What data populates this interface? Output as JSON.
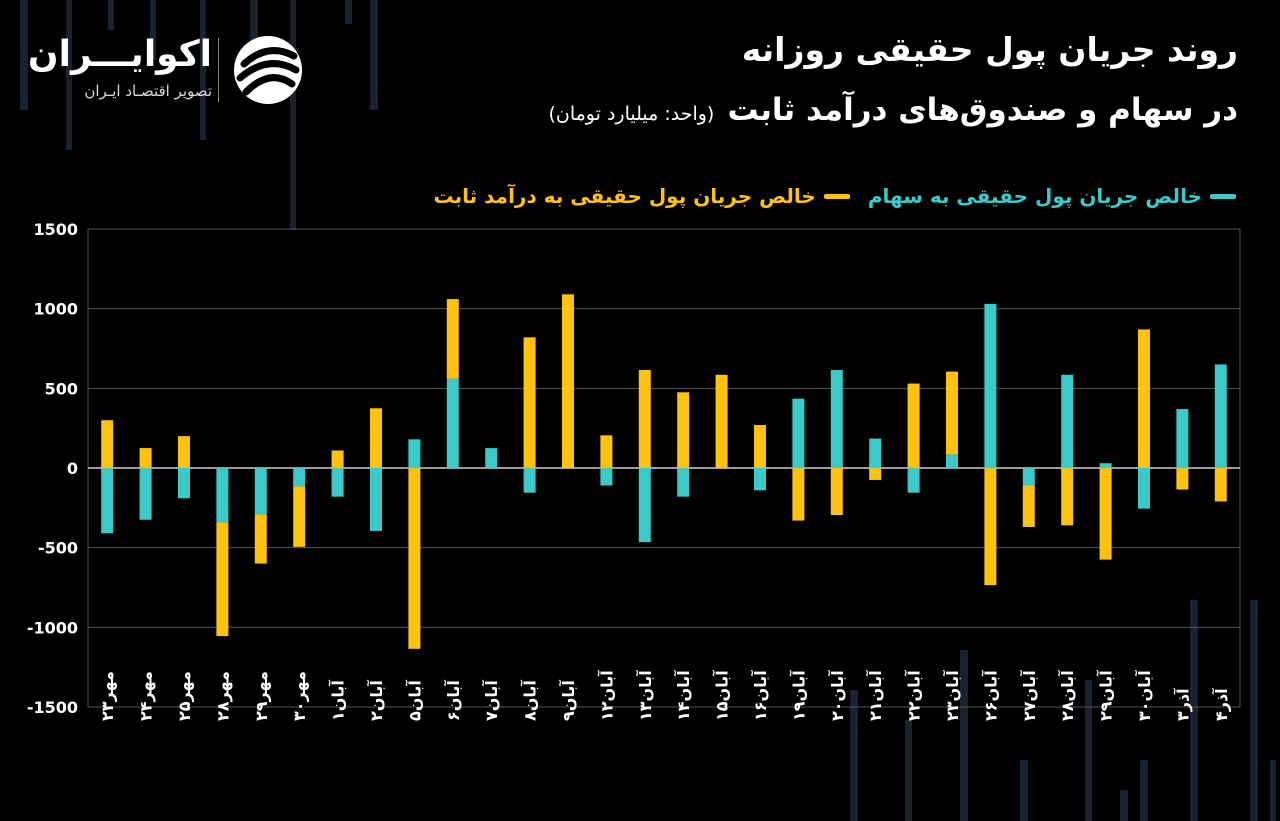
{
  "title": "روند جریان پول حقیقی روزانه",
  "subtitle": "در سهام و صندوق‌های درآمد ثابت",
  "unit_label": "(واحد: میلیارد تومان)",
  "logo": {
    "name": "اکوایـــران",
    "tagline": "تصویر اقتصـاد ایـران",
    "icon": "ecoiran-swirl-logo"
  },
  "colors": {
    "background": "#000000",
    "stocks": "#3cc9c9",
    "fixed_income": "#ffc20e",
    "text": "#ffffff",
    "grid": "#555555"
  },
  "legend": [
    {
      "label": "خالص جریان پول حقیقی به سهام",
      "color": "#3cc9c9"
    },
    {
      "label": "خالص جریان پول حقیقی به درآمد ثابت",
      "color": "#ffc20e"
    }
  ],
  "chart_data": {
    "type": "bar",
    "stacked": true,
    "title": "روند جریان پول حقیقی روزانه در سهام و صندوق‌های درآمد ثابت",
    "ylabel": "",
    "xlabel": "",
    "ylim": [
      -1500,
      1500
    ],
    "yticks": [
      1500,
      1000,
      500,
      0,
      -500,
      -1000,
      -1500
    ],
    "ytick_labels": [
      "1500",
      "1000",
      "500",
      "0",
      "-500",
      "-1000",
      "-1500"
    ],
    "grid": true,
    "legend_position": "top-right",
    "categories": [
      "مهر۲۳",
      "مهر۲۴",
      "مهر۲۵",
      "مهر۲۸",
      "مهر۲۹",
      "مهر۳۰",
      "آبان۱",
      "آبان۲",
      "آبان۵",
      "آبان۶",
      "آبان۷",
      "آبان۸",
      "آبان۹",
      "آبان۱۲",
      "آبان۱۳",
      "آبان۱۴",
      "آبان۱۵",
      "آبان۱۶",
      "آبان۱۹",
      "آبان۲۰",
      "آبان۲۱",
      "آبان۲۲",
      "آبان۲۳",
      "آبان۲۶",
      "آبان۲۷",
      "آبان۲۸",
      "آبان۲۹",
      "آبان۳۰",
      "آذر۳",
      "آذر۴"
    ],
    "series": [
      {
        "name": "خالص جریان پول حقیقی به سهام",
        "color": "#3cc9c9",
        "values": [
          -410,
          -325,
          -190,
          -340,
          -290,
          -115,
          -180,
          -395,
          180,
          560,
          125,
          -155,
          0,
          -110,
          -465,
          -180,
          0,
          -140,
          435,
          615,
          185,
          -155,
          85,
          1030,
          -110,
          585,
          30,
          -255,
          370,
          650
        ]
      },
      {
        "name": "خالص جریان پول حقیقی به درآمد ثابت",
        "color": "#ffc20e",
        "values": [
          300,
          125,
          200,
          -715,
          -310,
          -380,
          110,
          375,
          -1135,
          500,
          0,
          820,
          1090,
          205,
          615,
          475,
          585,
          270,
          -330,
          -295,
          -75,
          530,
          520,
          -735,
          -260,
          -360,
          -575,
          870,
          -135,
          -210
        ]
      }
    ]
  }
}
